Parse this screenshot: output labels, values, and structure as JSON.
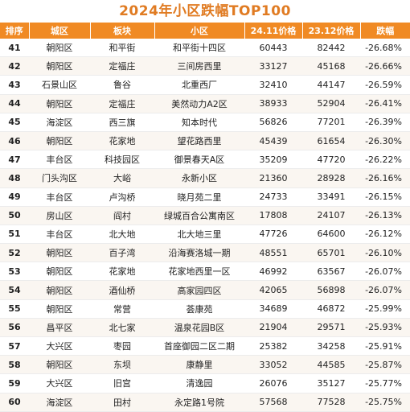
{
  "title": "2024年小区跌幅TOP100",
  "headers": [
    "排序",
    "城区",
    "板块",
    "小区",
    "24.11价格",
    "23.12价格",
    "跌幅"
  ],
  "rows": [
    {
      "rank": "41",
      "district": "朝阳区",
      "area": "和平街",
      "community": "和平街十四区",
      "price_2411": "60443",
      "price_2312": "82442",
      "drop": "-26.68%"
    },
    {
      "rank": "42",
      "district": "朝阳区",
      "area": "定福庄",
      "community": "三间房西里",
      "price_2411": "33127",
      "price_2312": "45168",
      "drop": "-26.66%"
    },
    {
      "rank": "43",
      "district": "石景山区",
      "area": "鲁谷",
      "community": "北重西厂",
      "price_2411": "32410",
      "price_2312": "44147",
      "drop": "-26.59%"
    },
    {
      "rank": "44",
      "district": "朝阳区",
      "area": "定福庄",
      "community": "美然动力A2区",
      "price_2411": "38933",
      "price_2312": "52904",
      "drop": "-26.41%"
    },
    {
      "rank": "45",
      "district": "海淀区",
      "area": "西三旗",
      "community": "知本时代",
      "price_2411": "56826",
      "price_2312": "77201",
      "drop": "-26.39%"
    },
    {
      "rank": "46",
      "district": "朝阳区",
      "area": "花家地",
      "community": "望花路西里",
      "price_2411": "45439",
      "price_2312": "61654",
      "drop": "-26.30%"
    },
    {
      "rank": "47",
      "district": "丰台区",
      "area": "科技园区",
      "community": "御景春天A区",
      "price_2411": "35209",
      "price_2312": "47720",
      "drop": "-26.22%"
    },
    {
      "rank": "48",
      "district": "门头沟区",
      "area": "大峪",
      "community": "永新小区",
      "price_2411": "21360",
      "price_2312": "28928",
      "drop": "-26.16%"
    },
    {
      "rank": "49",
      "district": "丰台区",
      "area": "卢沟桥",
      "community": "晓月苑二里",
      "price_2411": "24733",
      "price_2312": "33491",
      "drop": "-26.15%"
    },
    {
      "rank": "50",
      "district": "房山区",
      "area": "阎村",
      "community": "绿城百合公寓南区",
      "price_2411": "17808",
      "price_2312": "24107",
      "drop": "-26.13%"
    },
    {
      "rank": "51",
      "district": "丰台区",
      "area": "北大地",
      "community": "北大地三里",
      "price_2411": "47726",
      "price_2312": "64600",
      "drop": "-26.12%"
    },
    {
      "rank": "52",
      "district": "朝阳区",
      "area": "百子湾",
      "community": "沿海赛洛城一期",
      "price_2411": "48551",
      "price_2312": "65701",
      "drop": "-26.10%"
    },
    {
      "rank": "53",
      "district": "朝阳区",
      "area": "花家地",
      "community": "花家地西里一区",
      "price_2411": "46992",
      "price_2312": "63567",
      "drop": "-26.07%"
    },
    {
      "rank": "54",
      "district": "朝阳区",
      "area": "酒仙桥",
      "community": "高家园四区",
      "price_2411": "42065",
      "price_2312": "56898",
      "drop": "-26.07%"
    },
    {
      "rank": "55",
      "district": "朝阳区",
      "area": "常营",
      "community": "荟康苑",
      "price_2411": "34689",
      "price_2312": "46872",
      "drop": "-25.99%"
    },
    {
      "rank": "56",
      "district": "昌平区",
      "area": "北七家",
      "community": "温泉花园B区",
      "price_2411": "21904",
      "price_2312": "29571",
      "drop": "-25.93%"
    },
    {
      "rank": "57",
      "district": "大兴区",
      "area": "枣园",
      "community": "首座御园二区二期",
      "price_2411": "25382",
      "price_2312": "34258",
      "drop": "-25.91%"
    },
    {
      "rank": "58",
      "district": "朝阳区",
      "area": "东坝",
      "community": "康静里",
      "price_2411": "33052",
      "price_2312": "44585",
      "drop": "-25.87%"
    },
    {
      "rank": "59",
      "district": "大兴区",
      "area": "旧宫",
      "community": "清逸园",
      "price_2411": "26076",
      "price_2312": "35127",
      "drop": "-25.77%"
    },
    {
      "rank": "60",
      "district": "海淀区",
      "area": "田村",
      "community": "永定路1号院",
      "price_2411": "57568",
      "price_2312": "77528",
      "drop": "-25.75%"
    }
  ],
  "colors": {
    "accent": "#f08a24",
    "title": "#e07b22",
    "stripe": "#faf6f1"
  }
}
